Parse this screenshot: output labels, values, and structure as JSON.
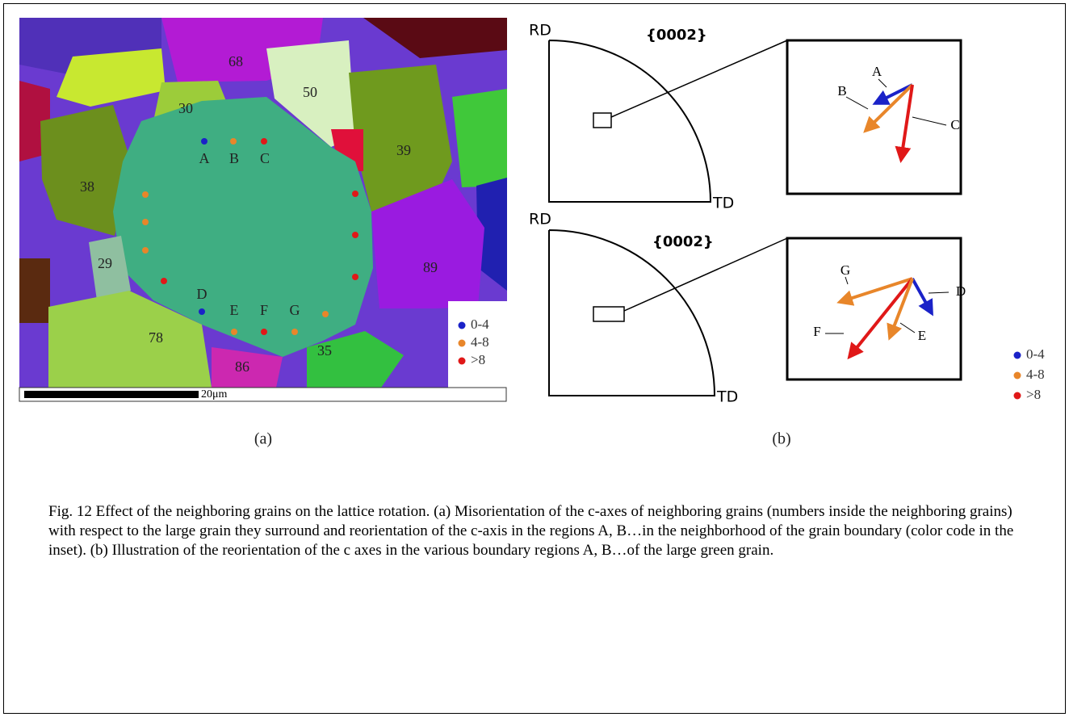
{
  "panel_a": {
    "grain_labels": [
      "68",
      "50",
      "30",
      "39",
      "38",
      "29",
      "89",
      "78",
      "86",
      "35"
    ],
    "point_labels": [
      "A",
      "B",
      "C",
      "D",
      "E",
      "F",
      "G"
    ],
    "legend": [
      "0-4",
      "4-8",
      ">8"
    ],
    "scale_bar": "20μm",
    "label": "(a)"
  },
  "panel_b": {
    "top": {
      "rd": "RD",
      "plane": "{0002}",
      "td": "TD",
      "arrow_labels": [
        "A",
        "B",
        "C"
      ]
    },
    "bottom": {
      "rd": "RD",
      "plane": "{0002}",
      "td": "TD",
      "arrow_labels": [
        "G",
        "D",
        "F",
        "E"
      ]
    },
    "legend": [
      "0-4",
      "4-8",
      ">8"
    ],
    "label": "(b)"
  },
  "caption": "Fig. 12 Effect of the neighboring grains on the lattice rotation. (a) Misorientation of the c-axes of neighboring grains (numbers inside the neighboring grains) with respect to the large grain they surround and reorientation of the c-axis in the regions A, B…in the neighborhood of the grain boundary (color code in the inset). (b) Illustration of the reorientation of the c axes in the various boundary regions A, B…of the large green grain."
}
